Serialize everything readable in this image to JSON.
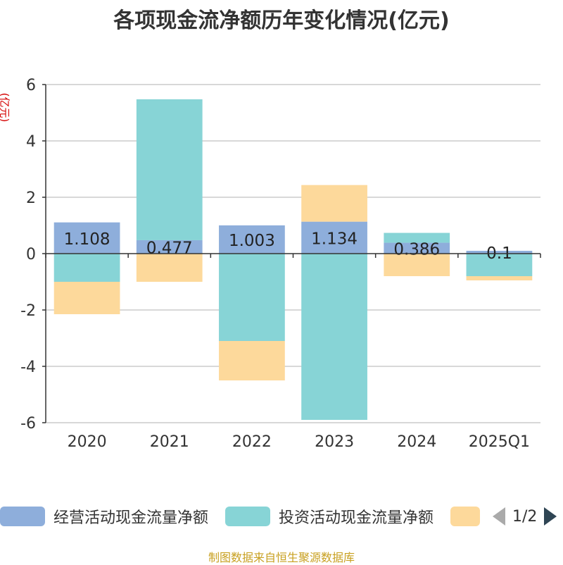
{
  "title": "各项现金流净额历年变化情况(亿元)",
  "unit_label": "(亿元)",
  "source": "制图数据来自恒生聚源数据库",
  "legend": {
    "items": [
      {
        "label": "经营活动现金流量净额",
        "color": "#8eaedb"
      },
      {
        "label": "投资活动现金流量净额",
        "color": "#87d4d6"
      },
      {
        "label": "",
        "color": "#fdd99b"
      }
    ],
    "page": "1/2"
  },
  "chart_data": {
    "type": "bar",
    "stacked": true,
    "categories": [
      "2020",
      "2021",
      "2022",
      "2023",
      "2024",
      "2025Q1"
    ],
    "series": [
      {
        "name": "经营活动现金流量净额",
        "values": [
          1.108,
          0.477,
          1.003,
          1.134,
          0.386,
          0.1
        ],
        "color": "#8eaedb"
      },
      {
        "name": "投资活动现金流量净额",
        "values": [
          -1.0,
          5.0,
          -3.1,
          -5.9,
          0.35,
          -0.8
        ],
        "color": "#87d4d6"
      },
      {
        "values": [
          -1.15,
          -1.0,
          -1.4,
          1.3,
          -0.8,
          -0.15
        ],
        "color": "#fdd99b"
      }
    ],
    "data_labels": [
      "1.108",
      "0.477",
      "1.003",
      "1.134",
      "0.386",
      "0.1"
    ],
    "ylim": [
      -6,
      6
    ],
    "yticks": [
      -6,
      -4,
      -2,
      0,
      2,
      4,
      6
    ],
    "grid": true
  }
}
